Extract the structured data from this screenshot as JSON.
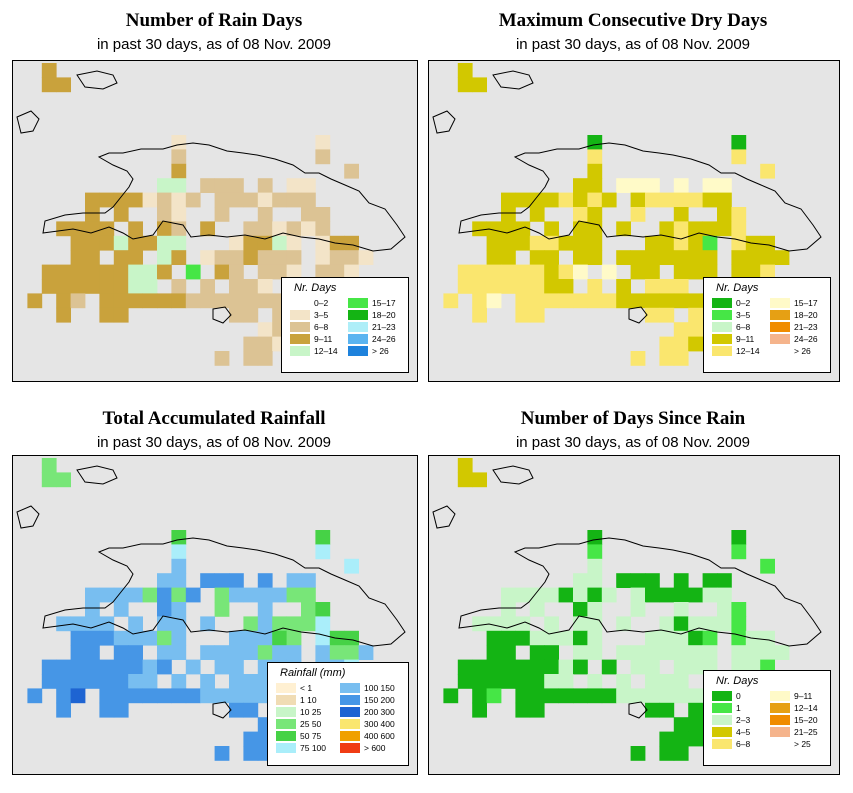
{
  "panels": [
    {
      "title": "Number of Rain Days",
      "subtitle": "in past 30 days, as of  08 Nov. 2009",
      "legend_title": "Nr. Days",
      "legend": [
        {
          "label": "0–2",
          "color": "#ffffff"
        },
        {
          "label": "3–5",
          "color": "#f3e4c8"
        },
        {
          "label": "6–8",
          "color": "#dcc394"
        },
        {
          "label": "9–11",
          "color": "#c9a23c"
        },
        {
          "label": "12–14",
          "color": "#c8f5c8"
        },
        {
          "label": "15–17",
          "color": "#46e646"
        },
        {
          "label": "18–20",
          "color": "#14b414"
        },
        {
          "label": "21–23",
          "color": "#aeeef8"
        },
        {
          "label": "24–26",
          "color": "#5ab4f0"
        },
        {
          "label": "> 26",
          "color": "#1e82dc"
        }
      ]
    },
    {
      "title": "Maximum Consecutive Dry Days",
      "subtitle": "in past 30 days, as of  08 Nov. 2009",
      "legend_title": "Nr. Days",
      "legend": [
        {
          "label": "0–2",
          "color": "#14b414"
        },
        {
          "label": "3–5",
          "color": "#46e646"
        },
        {
          "label": "6–8",
          "color": "#c8f5c8"
        },
        {
          "label": "9–11",
          "color": "#d2c800"
        },
        {
          "label": "12–14",
          "color": "#fae66e"
        },
        {
          "label": "15–17",
          "color": "#fffac8"
        },
        {
          "label": "18–20",
          "color": "#e6a014"
        },
        {
          "label": "21–23",
          "color": "#f08c00"
        },
        {
          "label": "24–26",
          "color": "#f5b48c"
        },
        {
          "label": "> 26",
          "color": "#ffffff"
        }
      ]
    },
    {
      "title": "Total Accumulated Rainfall",
      "subtitle": "in past 30 days, as of  08 Nov. 2009",
      "legend_title": "Rainfall (mm)",
      "legend": [
        {
          "label": "< 1",
          "color": "#fff0d2"
        },
        {
          "label": "1   10",
          "color": "#f0dcb4"
        },
        {
          "label": "10   25",
          "color": "#c8f5c8"
        },
        {
          "label": "25   50",
          "color": "#78e678"
        },
        {
          "label": "50   75",
          "color": "#46d246"
        },
        {
          "label": "75  100",
          "color": "#aaeefa"
        },
        {
          "label": "100  150",
          "color": "#78bef0"
        },
        {
          "label": "150  200",
          "color": "#4696e6"
        },
        {
          "label": "200  300",
          "color": "#1e64d2"
        },
        {
          "label": "300  400",
          "color": "#fae66e"
        },
        {
          "label": "400  600",
          "color": "#f0a000"
        },
        {
          "label": "> 600",
          "color": "#f03c14"
        }
      ]
    },
    {
      "title": "Number of Days Since Rain",
      "subtitle": "in past 30 days, as of  08 Nov. 2009",
      "legend_title": "Nr. Days",
      "legend": [
        {
          "label": "0",
          "color": "#14b414"
        },
        {
          "label": "1",
          "color": "#46e646"
        },
        {
          "label": "2–3",
          "color": "#c8f5c8"
        },
        {
          "label": "4–5",
          "color": "#d2c800"
        },
        {
          "label": "6–8",
          "color": "#fae66e"
        },
        {
          "label": "9–11",
          "color": "#fffac8"
        },
        {
          "label": "12–14",
          "color": "#e6a014"
        },
        {
          "label": "15–20",
          "color": "#f08c00"
        },
        {
          "label": "21–25",
          "color": "#f5b48c"
        },
        {
          "label": "> 25",
          "color": "#ffffff"
        }
      ]
    }
  ],
  "grids": [
    [
      "..3.........................",
      "..33........................",
      "............................",
      "............................",
      "............................",
      "...........1.........1......",
      "...........2.........2......",
      "...........3...........2....",
      "..........44.222.2.11.......",
      ".....33331212.2221222.......",
      ".....3.3..21..2..2..22......",
      "...3333.3.32.3..221212......",
      "....33343344...13341.133....",
      "....33.33.43.1223222.1221...",
      "..333333443.5.32.221.221....",
      "..33333344.2.2.221...22222..",
      ".3.32.3333332222222222221...",
      "...3..33.......22.2.22......",
      ".................12.........",
      "................221.........",
      "..............2.22.........."
    ],
    [
      "..3.........................",
      "..33........................",
      "............................",
      "............................",
      "............................",
      "...........0.........0......",
      "...........4.........4......",
      "...........3...........4....",
      "..........33.555.5.55.......",
      ".....33334343.3444433.......",
      ".....3.3..43..4..3..34......",
      "...3333.3.33.3..343334......",
      "....33344333...33431.433....",
      "....33.33.33.3333333.3333...",
      "..444444345.5.33.333.334....",
      "..44444433.4.3.444...33333..",
      ".4.45.4444444333333333334...",
      "...4..44.......44.4.44......",
      ".................44.........",
      "................443.........",
      "..............4.44.........."
    ],
    [
      "..3.........................",
      "..33........................",
      "............................",
      "............................",
      "............................",
      "...........4.........4......",
      "...........5.........5......",
      "...........6...........5....",
      "..........66.777.7.66.......",
      ".....66663737.3666633.......",
      ".....6.6..76..3..6..34......",
      "...6666.6.66.6..363335......",
      "....77766636...66643.544....",
      "....77.77.66.6666366.6336...",
      "..777777767.6.66.666.665....",
      "..77777766.6.6.666...66666..",
      ".7.78.7777777666666666667...",
      "...7..77.......77.7.77......",
      ".................77.........",
      "................776.........",
      "..............7.77.........."
    ],
    [
      "..3.........................",
      "..33........................",
      "............................",
      "............................",
      "............................",
      "...........0.........0......",
      "...........1.........1......",
      "...........2...........1....",
      "..........22.000.0.00.......",
      ".....22220202.2000022.......",
      ".....2.2..02..2..2..21......",
      "...2222.2.22.2..202221......",
      "....00022202...22201.122....",
      "....00.00.22.2222222.2222...",
      "..000000020.0.22.222.221....",
      "..00000022.2.2.222...22222..",
      ".0.01.0000000222222222220...",
      "...0..00.......00.0.00......",
      ".................00.........",
      "................000.........",
      "..............0.00.........."
    ]
  ]
}
